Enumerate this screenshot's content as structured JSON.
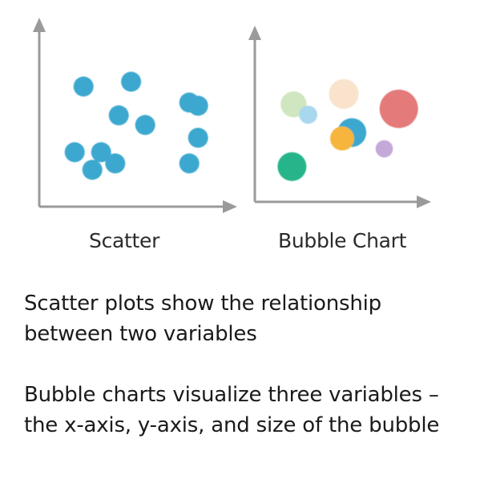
{
  "scatter": {
    "label": "Scatter",
    "color": "#3ea8cf",
    "points": [
      {
        "x": 2.1,
        "y": 7.1
      },
      {
        "x": 4.8,
        "y": 7.4
      },
      {
        "x": 8.1,
        "y": 6.1
      },
      {
        "x": 8.6,
        "y": 5.9
      },
      {
        "x": 4.1,
        "y": 5.3
      },
      {
        "x": 5.6,
        "y": 4.7
      },
      {
        "x": 8.6,
        "y": 3.9
      },
      {
        "x": 1.6,
        "y": 3.0
      },
      {
        "x": 3.1,
        "y": 3.0
      },
      {
        "x": 3.9,
        "y": 2.3
      },
      {
        "x": 2.6,
        "y": 1.9
      },
      {
        "x": 8.1,
        "y": 2.3
      }
    ]
  },
  "bubble": {
    "label": "Bubble Chart",
    "bubbles": [
      {
        "x": 2.0,
        "y": 6.2,
        "size": 2.7,
        "color": "#cfe6c0"
      },
      {
        "x": 5.1,
        "y": 6.9,
        "size": 3.1,
        "color": "#f9e3cc"
      },
      {
        "x": 8.5,
        "y": 5.9,
        "size": 4.0,
        "color": "#e47a7a"
      },
      {
        "x": 2.9,
        "y": 5.5,
        "size": 1.9,
        "color": "#a9d8ee"
      },
      {
        "x": 5.6,
        "y": 4.3,
        "size": 3.0,
        "color": "#3ea8cf"
      },
      {
        "x": 5.0,
        "y": 3.9,
        "size": 2.5,
        "color": "#f6b63c"
      },
      {
        "x": 7.6,
        "y": 3.2,
        "size": 1.8,
        "color": "#c4a8d8"
      },
      {
        "x": 1.9,
        "y": 2.0,
        "size": 3.0,
        "color": "#25b58a"
      }
    ]
  },
  "text": {
    "line1": "Scatter plots show the relationship",
    "line2": "between two variables",
    "line3": "Bubble charts visualize three variables –",
    "line4": "the x-axis, y-axis, and size of the bubble"
  },
  "axis_color": "#9a9a9a"
}
